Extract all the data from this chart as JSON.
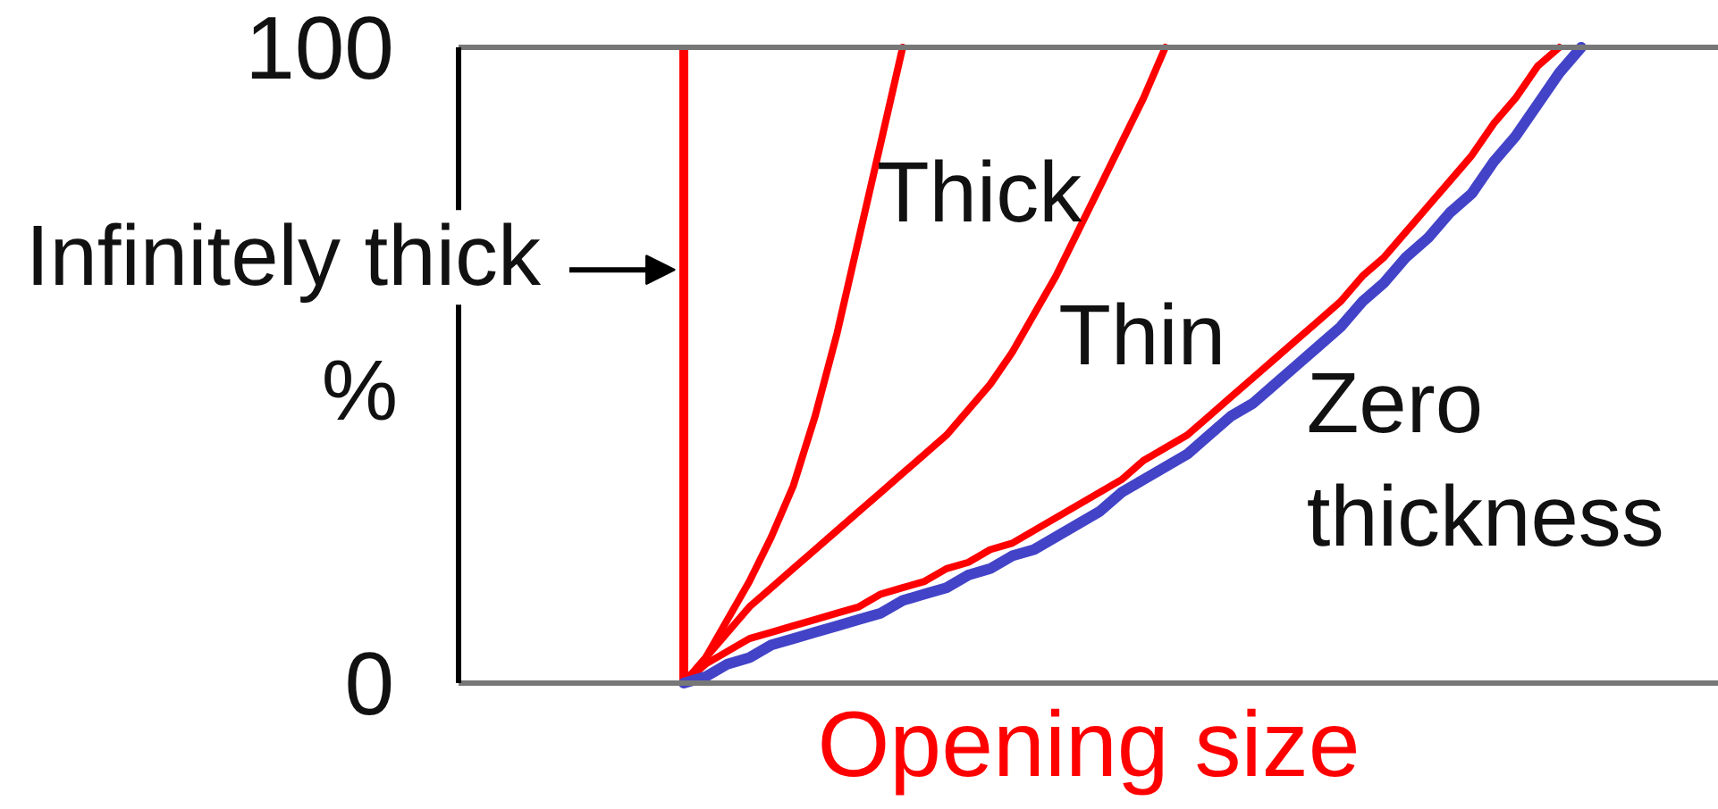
{
  "chart_data": {
    "type": "line",
    "xlabel": "Opening size",
    "ylabel": "%",
    "ylim": [
      0,
      100
    ],
    "yticks": [
      0,
      100
    ],
    "tick_labels": "y",
    "categories": [
      null,
      null,
      null,
      null,
      null,
      null,
      null,
      null,
      null,
      null,
      null,
      null,
      null,
      null,
      null,
      null,
      null,
      null,
      null,
      null,
      null,
      null,
      null,
      null,
      null,
      null,
      null,
      null,
      null,
      null,
      null,
      null,
      null,
      null,
      null,
      null,
      null,
      null,
      null,
      null,
      null,
      null
    ],
    "series": [
      {
        "type": "bar",
        "name": "Infinitely thick",
        "color": "#ff0000",
        "values": [
          100,
          null,
          null,
          null,
          null,
          null,
          null,
          null,
          null,
          null,
          null,
          null,
          null,
          null,
          null,
          null,
          null,
          null,
          null,
          null,
          null,
          null,
          null,
          null,
          null,
          null,
          null,
          null,
          null,
          null,
          null,
          null,
          null,
          null,
          null,
          null,
          null,
          null,
          null,
          null,
          null,
          null
        ]
      },
      {
        "name": "Thick",
        "color": "#ff0000",
        "values": [
          0,
          4,
          10,
          16,
          23,
          31,
          42,
          55,
          70,
          85,
          100,
          null,
          null,
          null,
          null,
          null,
          null,
          null,
          null,
          null,
          null,
          null,
          null,
          null,
          null,
          null,
          null,
          null,
          null,
          null,
          null,
          null,
          null,
          null,
          null,
          null,
          null,
          null,
          null,
          null,
          null,
          null
        ]
      },
      {
        "name": "Thin",
        "color": "#ff0000",
        "values": [
          0,
          4,
          8,
          12,
          15,
          18,
          21,
          24,
          27,
          30,
          33,
          36,
          39,
          43,
          47,
          52,
          58,
          64,
          71,
          78,
          85,
          92,
          100,
          null,
          null,
          null,
          null,
          null,
          null,
          null,
          null,
          null,
          null,
          null,
          null,
          null,
          null,
          null,
          null,
          null,
          null,
          null
        ]
      },
      {
        "color": "#ff0000",
        "values": [
          0,
          3,
          5,
          7,
          8,
          9,
          10,
          11,
          12,
          14,
          15,
          16,
          18,
          19,
          21,
          22,
          24,
          26,
          28,
          30,
          32,
          35,
          37,
          39,
          42,
          45,
          48,
          51,
          54,
          57,
          60,
          64,
          67,
          71,
          75,
          79,
          83,
          88,
          92,
          97,
          100,
          null
        ]
      },
      {
        "name": "Zero thickness",
        "color": "#4343c8",
        "values": [
          0,
          1,
          3,
          4,
          6,
          7,
          8,
          9,
          10,
          11,
          13,
          14,
          15,
          17,
          18,
          20,
          21,
          23,
          25,
          27,
          30,
          32,
          34,
          36,
          39,
          42,
          44,
          47,
          50,
          53,
          56,
          60,
          63,
          67,
          70,
          74,
          77,
          82,
          86,
          91,
          96,
          100
        ]
      }
    ]
  }
}
